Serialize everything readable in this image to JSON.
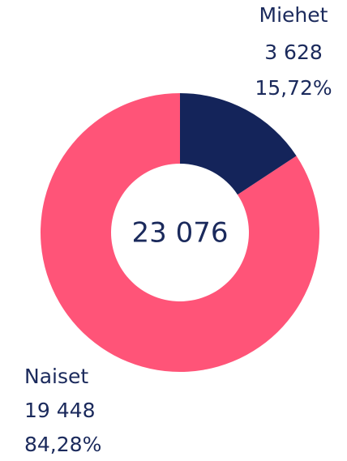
{
  "chart_data": {
    "type": "pie",
    "donut": true,
    "categories": [
      "Miehet",
      "Naiset"
    ],
    "values": [
      3628,
      19448
    ],
    "value_labels": [
      "3 628",
      "19 448"
    ],
    "percent_labels": [
      "15,72%",
      "84,28%"
    ],
    "colors": [
      "#14245a",
      "#ff5478"
    ],
    "total_label": "23 076"
  }
}
